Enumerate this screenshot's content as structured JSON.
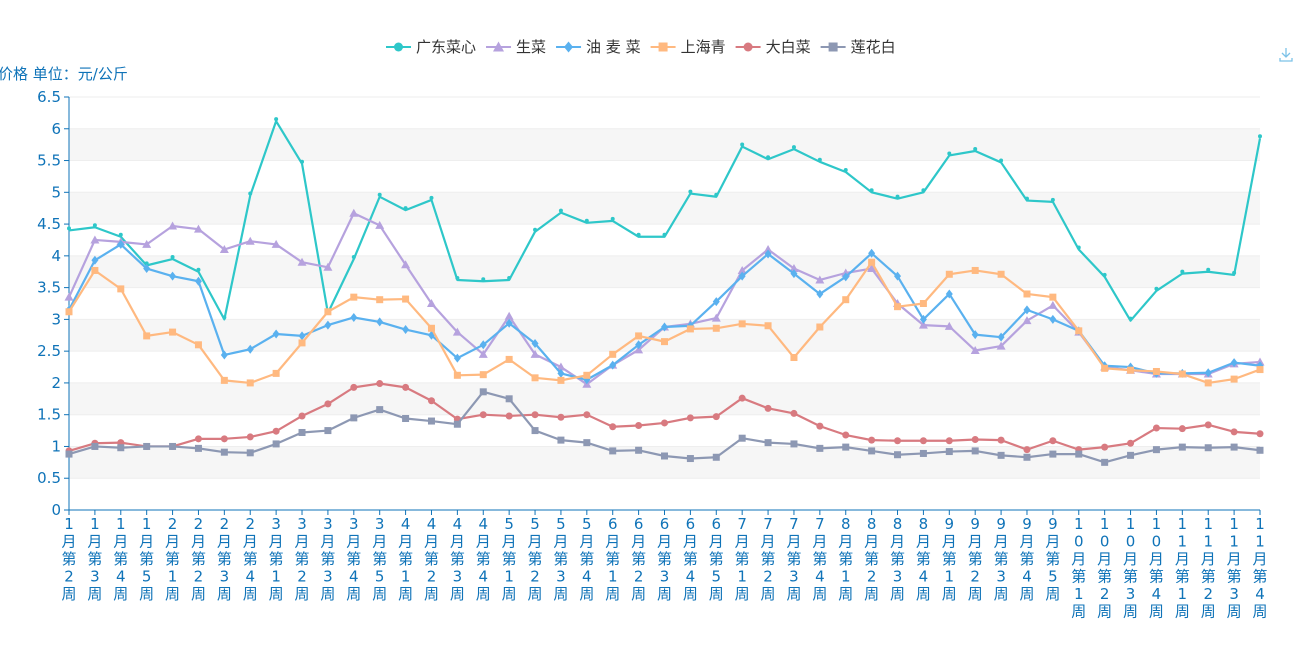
{
  "chart_data": {
    "type": "line",
    "title": "",
    "ylabel": "价格 单位：元/公斤",
    "xlabel": "",
    "ylim": [
      0,
      6.5
    ],
    "ytick_step": 0.5,
    "yticks": [
      "0",
      "0.5",
      "1",
      "1.5",
      "2",
      "2.5",
      "3",
      "3.5",
      "4",
      "4.5",
      "5",
      "5.5",
      "6",
      "6.5"
    ],
    "legend_position": "top-center",
    "categories": [
      "1月第2周",
      "1月第3周",
      "1月第4周",
      "1月第5周",
      "2月第1周",
      "2月第2周",
      "2月第3周",
      "2月第4周",
      "3月第1周",
      "3月第2周",
      "3月第3周",
      "3月第4周",
      "3月第5周",
      "4月第1周",
      "4月第2周",
      "4月第3周",
      "4月第4周",
      "5月第1周",
      "5月第2周",
      "5月第3周",
      "5月第4周",
      "6月第1周",
      "6月第2周",
      "6月第3周",
      "6月第4周",
      "6月第5周",
      "7月第1周",
      "7月第2周",
      "7月第3周",
      "7月第4周",
      "8月第1周",
      "8月第2周",
      "8月第3周",
      "8月第4周",
      "9月第1周",
      "9月第2周",
      "9月第3周",
      "9月第4周",
      "9月第5周",
      "10月第1周",
      "10月第2周",
      "10月第3周",
      "10月第4周",
      "11月第1周",
      "11月第2周",
      "11月第3周",
      "11月第4周"
    ],
    "series": [
      {
        "name": "广东菜心",
        "color": "#2ec7c9",
        "symbol": "pin",
        "values": [
          4.4,
          4.45,
          4.3,
          3.85,
          3.95,
          3.75,
          3.0,
          4.95,
          6.12,
          5.45,
          3.1,
          3.95,
          4.93,
          4.72,
          4.88,
          3.62,
          3.6,
          3.62,
          4.38,
          4.68,
          4.52,
          4.55,
          4.3,
          4.3,
          4.98,
          4.93,
          5.72,
          5.52,
          5.68,
          5.48,
          5.32,
          5.0,
          4.9,
          5.0,
          5.58,
          5.65,
          5.47,
          4.87,
          4.85,
          4.1,
          3.67,
          2.98,
          3.45,
          3.72,
          3.75,
          3.7,
          5.85
        ]
      },
      {
        "name": "生菜",
        "color": "#b6a2de",
        "symbol": "triangle",
        "values": [
          3.35,
          4.25,
          4.22,
          4.18,
          4.47,
          4.42,
          4.1,
          4.23,
          4.18,
          3.9,
          3.82,
          4.67,
          4.48,
          3.86,
          3.25,
          2.8,
          2.45,
          3.05,
          2.45,
          2.25,
          1.98,
          2.28,
          2.52,
          2.88,
          2.93,
          3.02,
          3.77,
          4.1,
          3.8,
          3.62,
          3.73,
          3.8,
          3.25,
          2.91,
          2.89,
          2.51,
          2.58,
          2.98,
          3.22,
          2.8,
          2.25,
          2.2,
          2.14,
          2.14,
          2.14,
          2.3,
          2.33
        ]
      },
      {
        "name": "油 麦 菜",
        "color": "#5ab1ef",
        "symbol": "diamond",
        "values": [
          3.15,
          3.93,
          4.18,
          3.8,
          3.68,
          3.6,
          2.44,
          2.53,
          2.77,
          2.74,
          2.91,
          3.03,
          2.96,
          2.84,
          2.75,
          2.39,
          2.6,
          2.94,
          2.62,
          2.15,
          2.05,
          2.28,
          2.6,
          2.88,
          2.9,
          3.28,
          3.68,
          4.03,
          3.72,
          3.4,
          3.67,
          4.04,
          3.68,
          3.0,
          3.4,
          2.76,
          2.72,
          3.15,
          3.0,
          2.82,
          2.27,
          2.25,
          2.15,
          2.15,
          2.16,
          2.32,
          2.27
        ]
      },
      {
        "name": "上海青",
        "color": "#ffb980",
        "symbol": "square",
        "values": [
          3.12,
          3.77,
          3.48,
          2.74,
          2.8,
          2.6,
          2.04,
          2.0,
          2.15,
          2.63,
          3.12,
          3.35,
          3.31,
          3.32,
          2.86,
          2.12,
          2.13,
          2.37,
          2.08,
          2.04,
          2.12,
          2.45,
          2.74,
          2.65,
          2.85,
          2.86,
          2.93,
          2.9,
          2.4,
          2.88,
          3.31,
          3.9,
          3.2,
          3.25,
          3.71,
          3.77,
          3.71,
          3.4,
          3.35,
          2.82,
          2.23,
          2.2,
          2.18,
          2.14,
          2.0,
          2.06,
          2.21
        ]
      },
      {
        "name": "大白菜",
        "color": "#d87a80",
        "symbol": "circle",
        "values": [
          0.93,
          1.05,
          1.06,
          1.0,
          1.0,
          1.12,
          1.12,
          1.15,
          1.24,
          1.48,
          1.67,
          1.93,
          1.99,
          1.93,
          1.72,
          1.43,
          1.5,
          1.48,
          1.5,
          1.46,
          1.5,
          1.31,
          1.33,
          1.37,
          1.45,
          1.47,
          1.76,
          1.6,
          1.52,
          1.32,
          1.18,
          1.1,
          1.09,
          1.09,
          1.09,
          1.11,
          1.1,
          0.95,
          1.09,
          0.95,
          0.99,
          1.05,
          1.29,
          1.28,
          1.34,
          1.23,
          1.2
        ]
      },
      {
        "name": "莲花白",
        "color": "#8d98b3",
        "symbol": "square",
        "values": [
          0.88,
          1.0,
          0.98,
          1.0,
          1.0,
          0.97,
          0.91,
          0.9,
          1.04,
          1.22,
          1.25,
          1.45,
          1.58,
          1.44,
          1.4,
          1.35,
          1.86,
          1.75,
          1.25,
          1.1,
          1.06,
          0.93,
          0.94,
          0.85,
          0.81,
          0.83,
          1.13,
          1.06,
          1.04,
          0.97,
          0.99,
          0.93,
          0.87,
          0.89,
          0.92,
          0.93,
          0.86,
          0.83,
          0.88,
          0.88,
          0.75,
          0.86,
          0.95,
          0.99,
          0.98,
          0.99,
          0.94
        ]
      }
    ]
  },
  "toolbox": {
    "download_icon": "download-icon"
  }
}
